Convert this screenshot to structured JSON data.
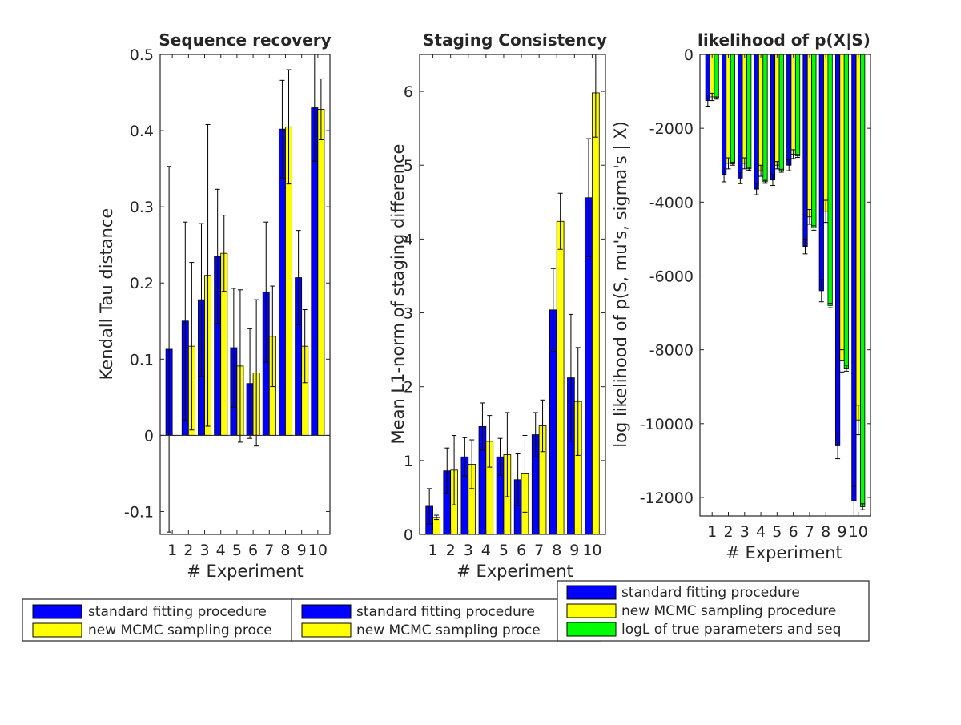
{
  "colors": {
    "standard": "#0000ff",
    "mcmc": "#ffff00",
    "true": "#00ff00",
    "axis": "#262626",
    "err": "#000000"
  },
  "chart_data": [
    {
      "type": "bar",
      "title": "Sequence recovery",
      "xlabel": "# Experiment",
      "ylabel": "Kendall Tau distance",
      "categories": [
        "1",
        "2",
        "3",
        "4",
        "5",
        "6",
        "7",
        "8",
        "9",
        "10"
      ],
      "ylim": [
        -0.13,
        0.5
      ],
      "yticks": [
        -0.1,
        0,
        0.1,
        0.2,
        0.3,
        0.4,
        0.5
      ],
      "ytick_labels": [
        "-0.1",
        "0",
        "0.1",
        "0.2",
        "0.3",
        "0.4",
        "0.5"
      ],
      "grid": false,
      "series": [
        {
          "name": "standard fitting procedure",
          "color_key": "standard",
          "values": [
            0.113,
            0.15,
            0.178,
            0.235,
            0.115,
            0.068,
            0.188,
            0.402,
            0.207,
            0.43
          ],
          "error": [
            0.24,
            0.13,
            0.1,
            0.088,
            0.078,
            0.072,
            0.092,
            0.064,
            0.062,
            0.07
          ]
        },
        {
          "name": "new MCMC sampling procedure",
          "color_key": "mcmc",
          "values": [
            0,
            0.117,
            0.21,
            0.239,
            0.091,
            0.082,
            0.13,
            0.405,
            0.117,
            0.428
          ],
          "error": [
            0,
            0.11,
            0.198,
            0.05,
            0.1,
            0.096,
            0.066,
            0.075,
            0.048,
            0.04
          ]
        }
      ],
      "legend": {
        "placement": "bottom",
        "entries": [
          "standard fitting procedure",
          "new MCMC sampling proce"
        ]
      }
    },
    {
      "type": "bar",
      "title": "Staging Consistency",
      "xlabel": "# Experiment",
      "ylabel": "Mean L1-norm of staging difference",
      "categories": [
        "1",
        "2",
        "3",
        "4",
        "5",
        "6",
        "7",
        "8",
        "9",
        "10"
      ],
      "ylim": [
        0,
        6.5
      ],
      "yticks": [
        0,
        1,
        2,
        3,
        4,
        5,
        6
      ],
      "ytick_labels": [
        "0",
        "1",
        "2",
        "3",
        "4",
        "5",
        "6"
      ],
      "grid": false,
      "series": [
        {
          "name": "standard fitting procedure",
          "color_key": "standard",
          "values": [
            0.38,
            0.86,
            1.05,
            1.46,
            1.05,
            0.74,
            1.35,
            3.04,
            2.12,
            4.56
          ],
          "error": [
            0.24,
            0.31,
            0.26,
            0.32,
            0.25,
            0.35,
            0.3,
            0.56,
            0.86,
            0.8
          ]
        },
        {
          "name": "new MCMC sampling procedure",
          "color_key": "mcmc",
          "values": [
            0.23,
            0.87,
            0.95,
            1.26,
            1.08,
            0.82,
            1.47,
            4.24,
            1.8,
            5.98
          ],
          "error": [
            0.03,
            0.47,
            0.33,
            0.35,
            0.57,
            0.52,
            0.35,
            0.38,
            0.73,
            0.6
          ]
        }
      ],
      "legend": {
        "placement": "bottom",
        "entries": [
          "standard fitting procedure",
          "new MCMC sampling proce"
        ]
      }
    },
    {
      "type": "bar",
      "title": "likelihood of p(X|S)",
      "xlabel": "# Experiment",
      "ylabel": "log likelihood of p(S, mu's, sigma's | X)",
      "categories": [
        "1",
        "2",
        "3",
        "4",
        "5",
        "6",
        "7",
        "8",
        "9",
        "10"
      ],
      "ylim": [
        -12500,
        0
      ],
      "yticks": [
        -12000,
        -10000,
        -8000,
        -6000,
        -4000,
        -2000,
        0
      ],
      "ytick_labels": [
        "-12000",
        "-10000",
        "-8000",
        "-6000",
        "-4000",
        "-2000",
        "0"
      ],
      "grid": false,
      "series": [
        {
          "name": "standard fitting procedure",
          "color_key": "standard",
          "values": [
            -1250,
            -3250,
            -3350,
            -3650,
            -3400,
            -3000,
            -5200,
            -6400,
            -10600,
            -12100
          ],
          "error": [
            150,
            200,
            150,
            150,
            150,
            150,
            200,
            300,
            350,
            400
          ]
        },
        {
          "name": "new MCMC sampling procedure",
          "color_key": "mcmc",
          "values": [
            -1150,
            -2950,
            -2950,
            -3150,
            -3000,
            -2700,
            -4400,
            -4250,
            -8300,
            -9900
          ],
          "error": [
            100,
            150,
            150,
            150,
            100,
            120,
            200,
            300,
            300,
            400
          ]
        },
        {
          "name": "logL of true parameters and seq",
          "color_key": "true",
          "values": [
            -1180,
            -2960,
            -3100,
            -3450,
            -3150,
            -2750,
            -4700,
            -6800,
            -8500,
            -12250
          ],
          "error": [
            30,
            40,
            40,
            40,
            40,
            40,
            60,
            60,
            80,
            80
          ]
        }
      ],
      "legend": {
        "placement": "bottom",
        "entries": [
          "standard fitting procedure",
          "new MCMC sampling procedure",
          "logL of true parameters and seq"
        ]
      }
    }
  ]
}
